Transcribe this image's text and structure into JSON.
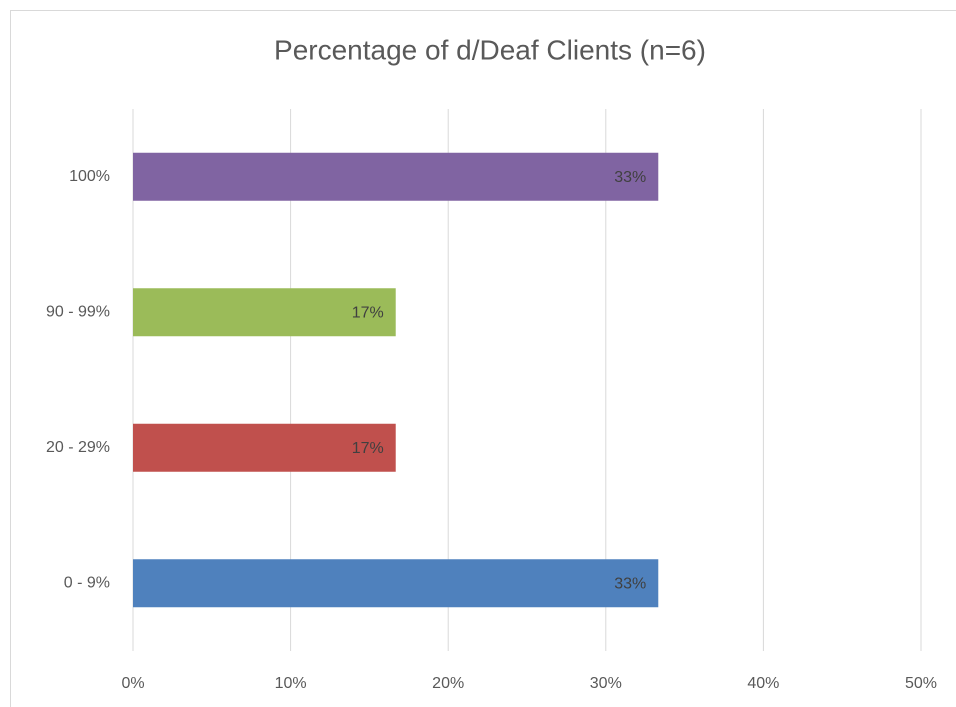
{
  "chart_data": {
    "type": "barh",
    "title": "Percentage of d/Deaf Clients (n=6)",
    "categories": [
      "0 - 9%",
      "20 - 29%",
      "90 - 99%",
      "100%"
    ],
    "values": [
      33.33,
      16.67,
      16.67,
      33.33
    ],
    "value_labels": [
      "33%",
      "17%",
      "17%",
      "33%"
    ],
    "colors": [
      "#4f81bd",
      "#c0504d",
      "#9bbb59",
      "#8064a2"
    ],
    "xlim": [
      0,
      50
    ],
    "xticks": [
      {
        "value": 0,
        "label": "0%"
      },
      {
        "value": 10,
        "label": "10%"
      },
      {
        "value": 20,
        "label": "20%"
      },
      {
        "value": 30,
        "label": "30%"
      },
      {
        "value": 40,
        "label": "40%"
      },
      {
        "value": 50,
        "label": "50%"
      }
    ],
    "grid": true
  }
}
